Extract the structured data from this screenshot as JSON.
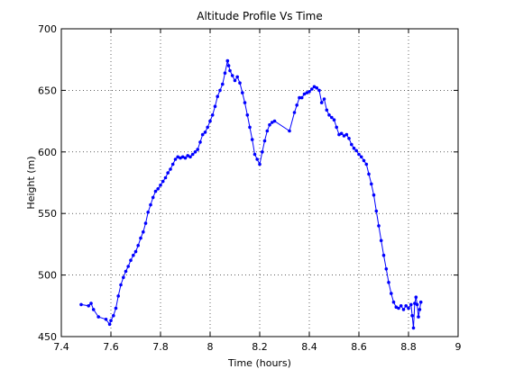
{
  "chart_data": {
    "type": "line",
    "title": "Altitude Profile Vs Time",
    "xlabel": "Time (hours)",
    "ylabel": "Height (m)",
    "xlim": [
      7.4,
      9.0
    ],
    "ylim": [
      450,
      700
    ],
    "xticks": [
      7.4,
      7.6,
      7.8,
      8.0,
      8.2,
      8.4,
      8.6,
      8.8,
      9.0
    ],
    "xtick_labels": [
      "7.4",
      "7.6",
      "7.8",
      "8",
      "8.2",
      "8.4",
      "8.6",
      "8.8",
      "9"
    ],
    "yticks": [
      450,
      500,
      550,
      600,
      650,
      700
    ],
    "ytick_labels": [
      "450",
      "500",
      "550",
      "600",
      "650",
      "700"
    ],
    "grid": true,
    "line_color": "#0000ff",
    "marker": "dot",
    "series": [
      {
        "points": [
          [
            7.48,
            476
          ],
          [
            7.51,
            475
          ],
          [
            7.52,
            477
          ],
          [
            7.53,
            472
          ],
          [
            7.55,
            466
          ],
          [
            7.58,
            464
          ],
          [
            7.595,
            460
          ],
          [
            7.6,
            463
          ],
          [
            7.61,
            467
          ],
          [
            7.62,
            473
          ],
          [
            7.63,
            483
          ],
          [
            7.64,
            492
          ],
          [
            7.65,
            498
          ],
          [
            7.66,
            503
          ],
          [
            7.67,
            507
          ],
          [
            7.68,
            512
          ],
          [
            7.69,
            516
          ],
          [
            7.7,
            519
          ],
          [
            7.71,
            524
          ],
          [
            7.72,
            530
          ],
          [
            7.73,
            535
          ],
          [
            7.74,
            542
          ],
          [
            7.75,
            551
          ],
          [
            7.76,
            557
          ],
          [
            7.77,
            563
          ],
          [
            7.78,
            568
          ],
          [
            7.79,
            570
          ],
          [
            7.8,
            573
          ],
          [
            7.81,
            576
          ],
          [
            7.82,
            579
          ],
          [
            7.83,
            583
          ],
          [
            7.84,
            586
          ],
          [
            7.85,
            590
          ],
          [
            7.86,
            594
          ],
          [
            7.87,
            596
          ],
          [
            7.88,
            595
          ],
          [
            7.89,
            596
          ],
          [
            7.9,
            595
          ],
          [
            7.91,
            597
          ],
          [
            7.92,
            596
          ],
          [
            7.93,
            598
          ],
          [
            7.94,
            600
          ],
          [
            7.95,
            602
          ],
          [
            7.96,
            608
          ],
          [
            7.97,
            614
          ],
          [
            7.98,
            616
          ],
          [
            7.99,
            620
          ],
          [
            8.0,
            625
          ],
          [
            8.01,
            630
          ],
          [
            8.02,
            637
          ],
          [
            8.03,
            645
          ],
          [
            8.04,
            650
          ],
          [
            8.05,
            655
          ],
          [
            8.06,
            664
          ],
          [
            8.07,
            674
          ],
          [
            8.075,
            670
          ],
          [
            8.08,
            666
          ],
          [
            8.09,
            662
          ],
          [
            8.1,
            658
          ],
          [
            8.11,
            661
          ],
          [
            8.12,
            656
          ],
          [
            8.13,
            648
          ],
          [
            8.14,
            640
          ],
          [
            8.15,
            630
          ],
          [
            8.16,
            620
          ],
          [
            8.17,
            610
          ],
          [
            8.18,
            598
          ],
          [
            8.19,
            594
          ],
          [
            8.2,
            590
          ],
          [
            8.21,
            600
          ],
          [
            8.22,
            609
          ],
          [
            8.23,
            617
          ],
          [
            8.24,
            622
          ],
          [
            8.25,
            624
          ],
          [
            8.26,
            625
          ],
          [
            8.32,
            617
          ],
          [
            8.34,
            632
          ],
          [
            8.35,
            638
          ],
          [
            8.36,
            644
          ],
          [
            8.37,
            644
          ],
          [
            8.38,
            647
          ],
          [
            8.39,
            648
          ],
          [
            8.4,
            649
          ],
          [
            8.41,
            651
          ],
          [
            8.42,
            653
          ],
          [
            8.43,
            652
          ],
          [
            8.44,
            650
          ],
          [
            8.45,
            640
          ],
          [
            8.46,
            643
          ],
          [
            8.47,
            634
          ],
          [
            8.48,
            630
          ],
          [
            8.49,
            628
          ],
          [
            8.5,
            626
          ],
          [
            8.51,
            620
          ],
          [
            8.52,
            614
          ],
          [
            8.53,
            615
          ],
          [
            8.54,
            613
          ],
          [
            8.55,
            614
          ],
          [
            8.56,
            611
          ],
          [
            8.57,
            606
          ],
          [
            8.58,
            603
          ],
          [
            8.59,
            601
          ],
          [
            8.6,
            598
          ],
          [
            8.61,
            596
          ],
          [
            8.62,
            593
          ],
          [
            8.63,
            590
          ],
          [
            8.64,
            582
          ],
          [
            8.65,
            574
          ],
          [
            8.66,
            565
          ],
          [
            8.67,
            552
          ],
          [
            8.68,
            540
          ],
          [
            8.69,
            528
          ],
          [
            8.7,
            516
          ],
          [
            8.71,
            505
          ],
          [
            8.72,
            494
          ],
          [
            8.73,
            485
          ],
          [
            8.74,
            478
          ],
          [
            8.75,
            474
          ],
          [
            8.76,
            473
          ],
          [
            8.77,
            475
          ],
          [
            8.78,
            472
          ],
          [
            8.79,
            475
          ],
          [
            8.8,
            473
          ],
          [
            8.81,
            476
          ],
          [
            8.815,
            467
          ],
          [
            8.82,
            457
          ],
          [
            8.825,
            477
          ],
          [
            8.83,
            482
          ],
          [
            8.835,
            476
          ],
          [
            8.84,
            466
          ],
          [
            8.845,
            472
          ],
          [
            8.85,
            478
          ]
        ]
      }
    ]
  }
}
